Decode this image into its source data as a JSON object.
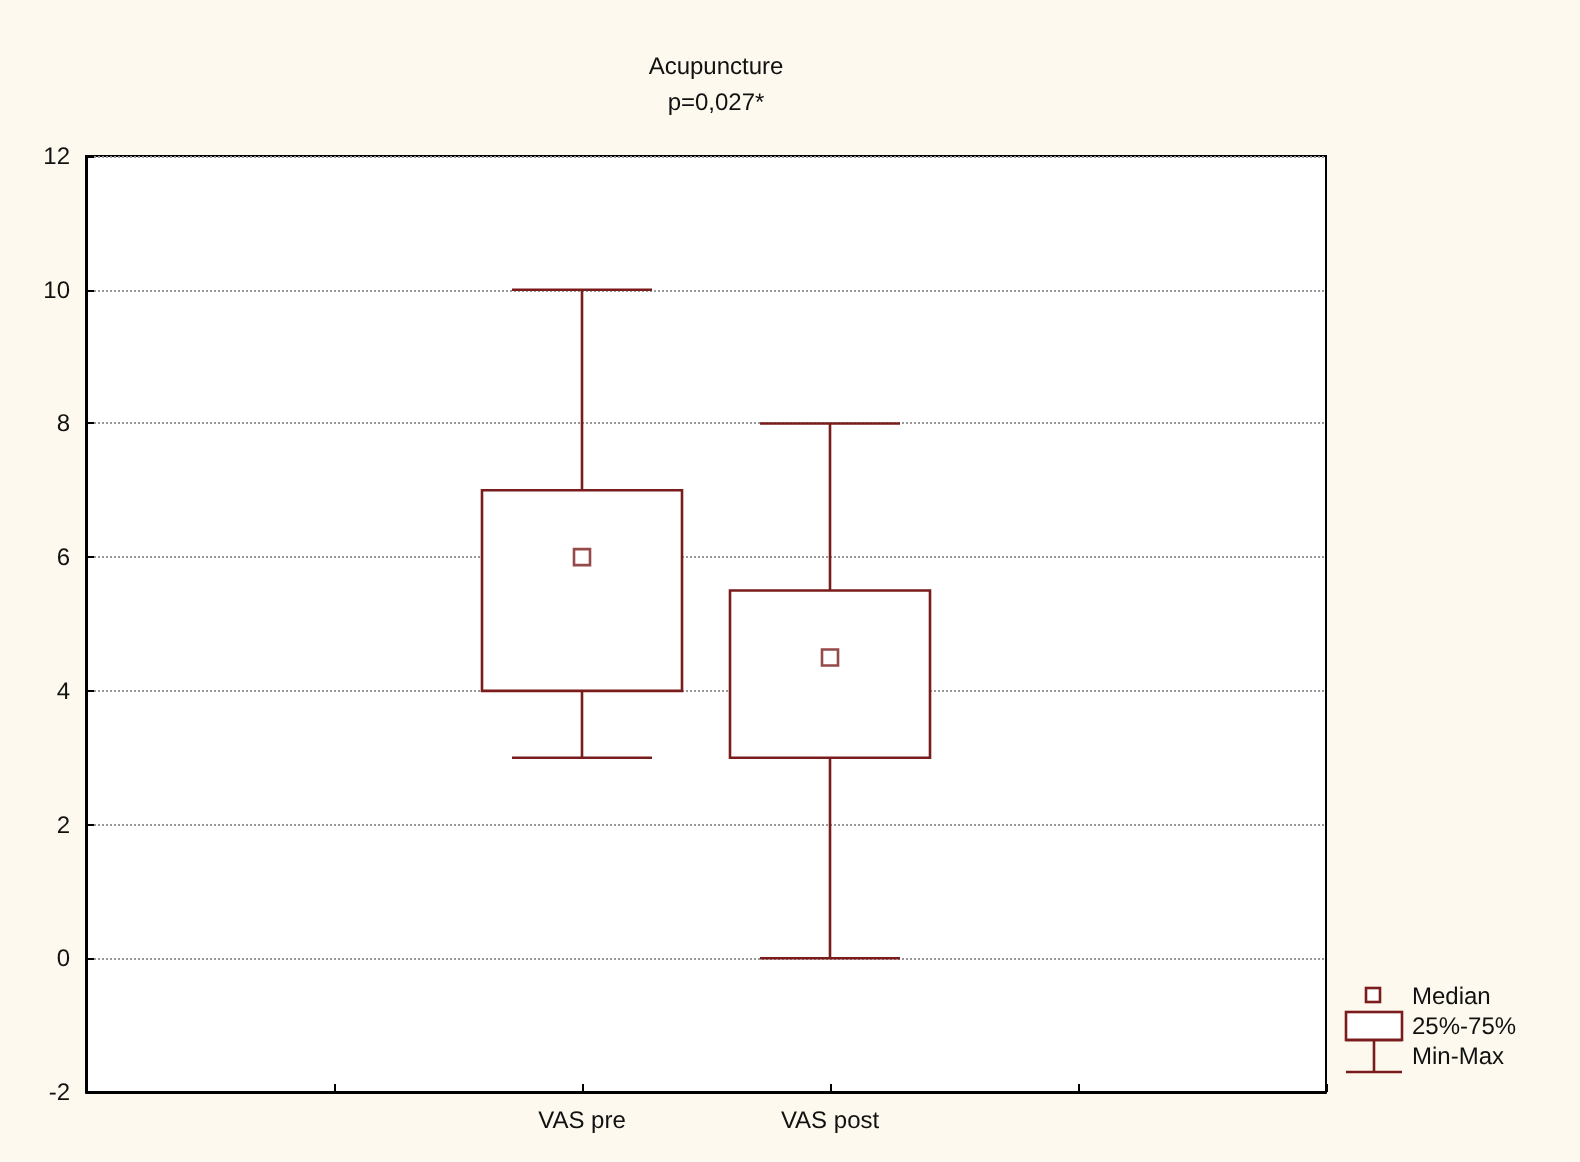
{
  "chart_data": {
    "type": "box",
    "title": "Acupuncture",
    "subtitle": "p=0,027*",
    "categories": [
      "VAS pre",
      "VAS post"
    ],
    "boxes": [
      {
        "low": 3,
        "q1": 4,
        "median": 6,
        "q3": 7,
        "high": 10
      },
      {
        "low": 0,
        "q1": 3,
        "median": 4.5,
        "q3": 5.5,
        "high": 8
      }
    ],
    "color": "#7b1c1c",
    "ylim": [
      -2,
      12
    ],
    "yticks": [
      -2,
      0,
      2,
      4,
      6,
      8,
      10,
      12
    ],
    "grid": "y",
    "marker": "square",
    "annotations": [
      "Median",
      "25%-75%",
      "Min-Max"
    ]
  }
}
